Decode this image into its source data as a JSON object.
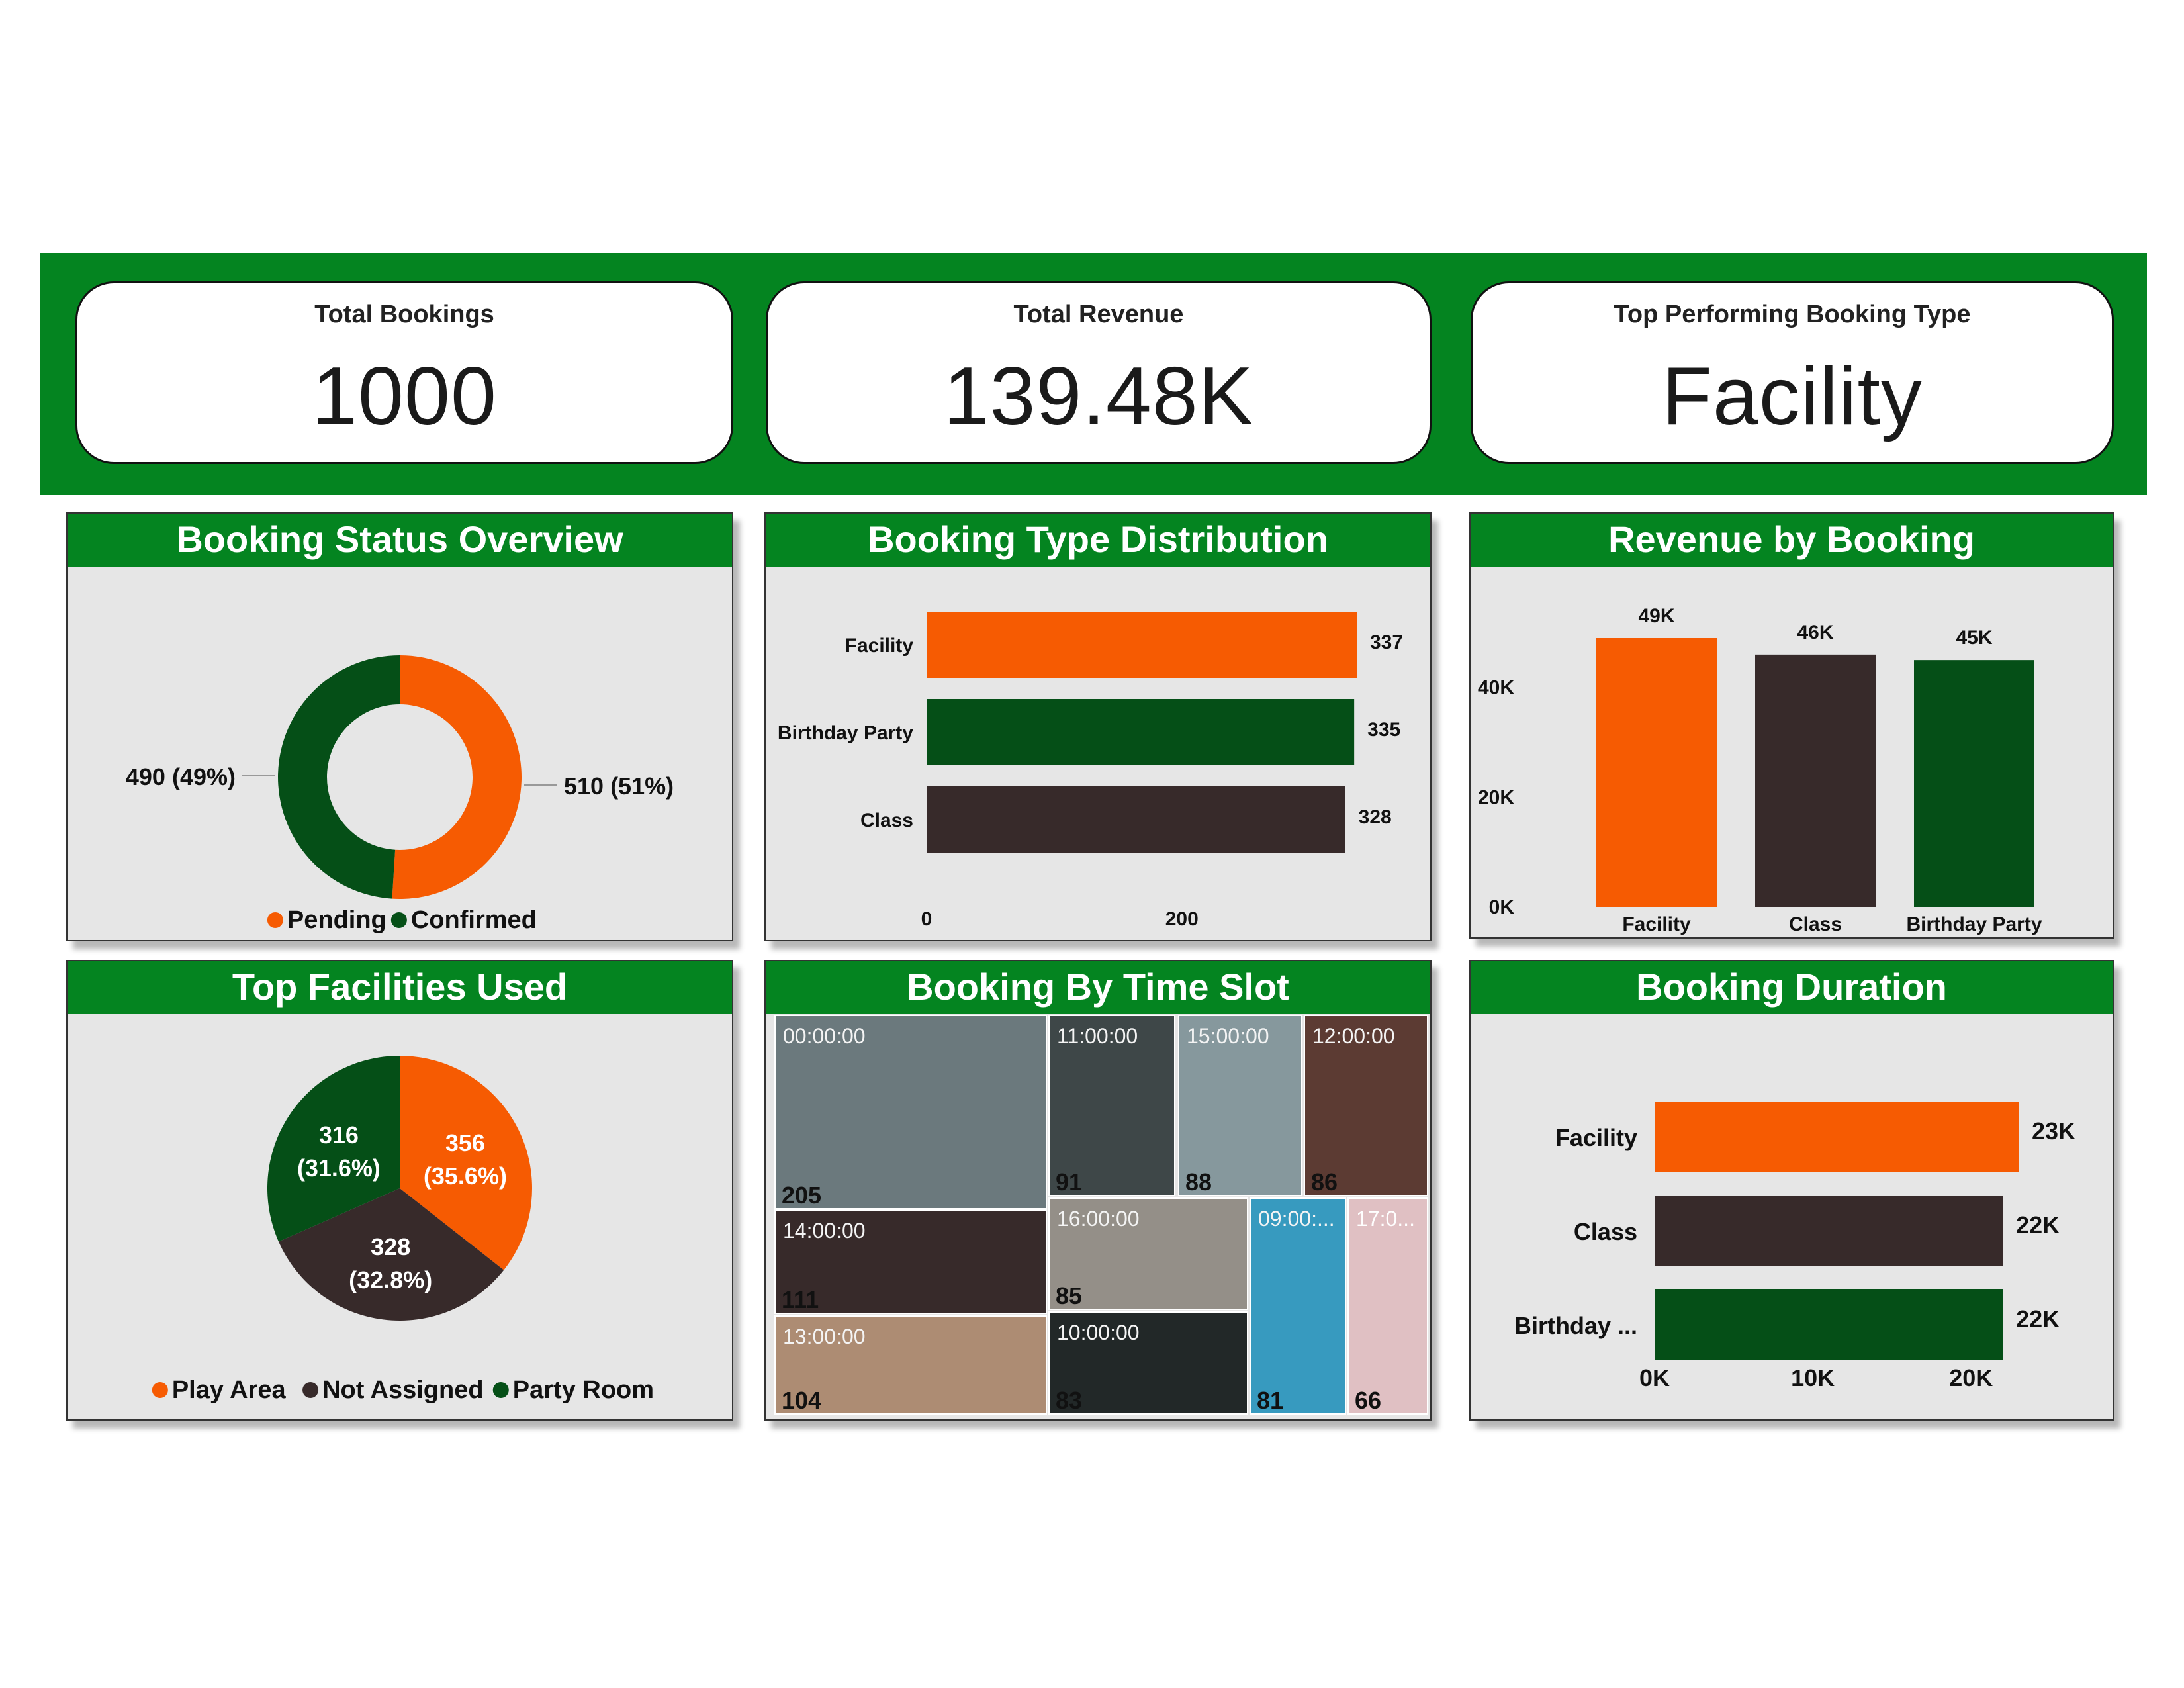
{
  "kpis": [
    {
      "title": "Total Bookings",
      "value": "1000"
    },
    {
      "title": "Total Revenue",
      "value": "139.48K"
    },
    {
      "title": "Top Performing Booking Type",
      "value": "Facility"
    }
  ],
  "colors": {
    "orange": "#f65b02",
    "dark_green": "#054f17",
    "dark_brown": "#372a2a",
    "header_green": "#048420",
    "panel_bg": "#e6e6e6"
  },
  "chart_data": [
    {
      "id": "booking_status",
      "type": "pie",
      "title": "Booking Status Overview",
      "slices": [
        {
          "name": "Pending",
          "value": 510,
          "label": "510 (51%)",
          "color": "#f65b02"
        },
        {
          "name": "Confirmed",
          "value": 490,
          "label": "490 (49%)",
          "color": "#054f17"
        }
      ],
      "legend_position": "bottom"
    },
    {
      "id": "booking_type",
      "type": "bar",
      "orientation": "horizontal",
      "title": "Booking Type Distribution",
      "categories": [
        "Facility",
        "Birthday Party",
        "Class"
      ],
      "values": [
        337,
        335,
        328
      ],
      "colors": [
        "#f65b02",
        "#054f17",
        "#372a2a"
      ],
      "x_ticks": [
        "0",
        "200"
      ],
      "xlim": [
        0,
        337
      ]
    },
    {
      "id": "revenue_by_booking",
      "type": "bar",
      "orientation": "vertical",
      "title": "Revenue by Booking",
      "categories": [
        "Facility",
        "Class",
        "Birthday Party"
      ],
      "values": [
        49,
        46,
        45
      ],
      "value_labels": [
        "49K",
        "46K",
        "45K"
      ],
      "colors": [
        "#f65b02",
        "#372a2a",
        "#054f17"
      ],
      "y_ticks": [
        "0K",
        "20K",
        "40K"
      ],
      "ylim": [
        0,
        49
      ]
    },
    {
      "id": "top_facilities",
      "type": "pie",
      "title": "Top Facilities Used",
      "slices": [
        {
          "name": "Play Area",
          "value": 356,
          "label": [
            "356",
            "(35.6%)"
          ],
          "color": "#f65b02"
        },
        {
          "name": "Not Assigned",
          "value": 328,
          "label": [
            "328",
            "(32.8%)"
          ],
          "color": "#372a2a"
        },
        {
          "name": "Party Room",
          "value": 316,
          "label": [
            "316",
            "(31.6%)"
          ],
          "color": "#054f17"
        }
      ],
      "legend_position": "bottom"
    },
    {
      "id": "time_slot",
      "type": "treemap",
      "title": "Booking By Time Slot",
      "items": [
        {
          "slot": "00:00:00",
          "value": 205,
          "color": "#6b797d"
        },
        {
          "slot": "11:00:00",
          "value": 91,
          "color": "#3e4748"
        },
        {
          "slot": "15:00:00",
          "value": 88,
          "color": "#86989d"
        },
        {
          "slot": "12:00:00",
          "value": 86,
          "color": "#5c3b33"
        },
        {
          "slot": "14:00:00",
          "value": 111,
          "color": "#372a2a"
        },
        {
          "slot": "16:00:00",
          "value": 85,
          "color": "#948f88"
        },
        {
          "slot": "09:00:...",
          "value": 81,
          "color": "#379abf"
        },
        {
          "slot": "17:0...",
          "value": 66,
          "color": "#e0c0c3"
        },
        {
          "slot": "13:00:00",
          "value": 104,
          "color": "#ad8c73"
        },
        {
          "slot": "10:00:00",
          "value": 83,
          "color": "#222828"
        }
      ]
    },
    {
      "id": "booking_duration",
      "type": "bar",
      "orientation": "horizontal",
      "title": "Booking Duration",
      "categories": [
        "Facility",
        "Class",
        "Birthday ..."
      ],
      "values": [
        23,
        22,
        22
      ],
      "value_labels": [
        "23K",
        "22K",
        "22K"
      ],
      "colors": [
        "#f65b02",
        "#372a2a",
        "#054f17"
      ],
      "x_ticks": [
        "0K",
        "10K",
        "20K"
      ],
      "xlim": [
        0,
        23
      ]
    }
  ]
}
